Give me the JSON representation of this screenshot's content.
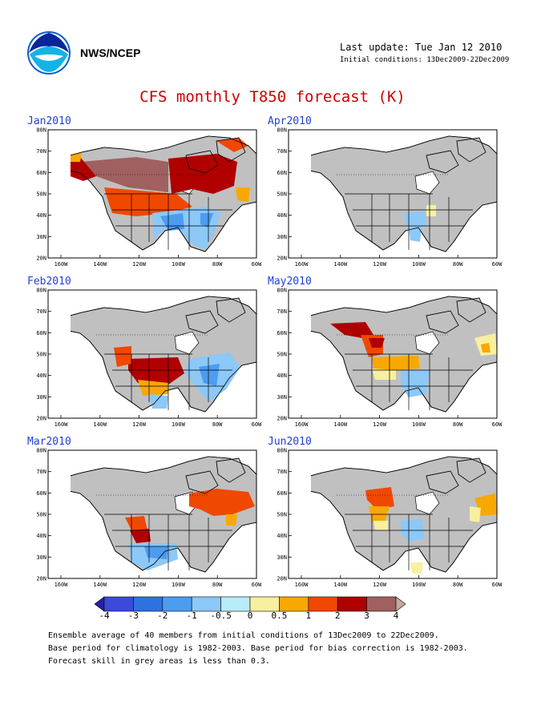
{
  "header": {
    "org": "NWS/NCEP",
    "last_update": "Last update: Tue Jan 12 2010",
    "initial_conditions": "Initial conditions: 13Dec2009-22Dec2009"
  },
  "title": "CFS monthly T850 forecast (K)",
  "panels": [
    {
      "label": "Jan2010"
    },
    {
      "label": "Apr2010"
    },
    {
      "label": "Feb2010"
    },
    {
      "label": "May2010"
    },
    {
      "label": "Mar2010"
    },
    {
      "label": "Jun2010"
    }
  ],
  "axes": {
    "lat_labels": [
      "80N",
      "70N",
      "60N",
      "50N",
      "40N",
      "30N",
      "20N"
    ],
    "lon_labels": [
      "160W",
      "140W",
      "120W",
      "100W",
      "80W",
      "60W"
    ]
  },
  "colorbar": {
    "labels": [
      "-4",
      "-3",
      "-2",
      "-1",
      "-0.5",
      "0",
      "0.5",
      "1",
      "2",
      "3",
      "4"
    ],
    "colors": [
      "#2b1fa8",
      "#3c4ad9",
      "#2e72e0",
      "#4c9cf0",
      "#8cc8f8",
      "#b8ecf8",
      "#f8f0a0",
      "#f8a800",
      "#f04800",
      "#b00000",
      "#a06060",
      "#c8a8a0"
    ]
  },
  "footnotes": [
    "Ensemble average of 40 members from initial conditions of 13Dec2009 to 22Dec2009.",
    "Base period for climatology is 1982-2003. Base period for bias correction is 1982-2003.",
    "Forecast skill in grey areas is less than 0.3."
  ]
}
